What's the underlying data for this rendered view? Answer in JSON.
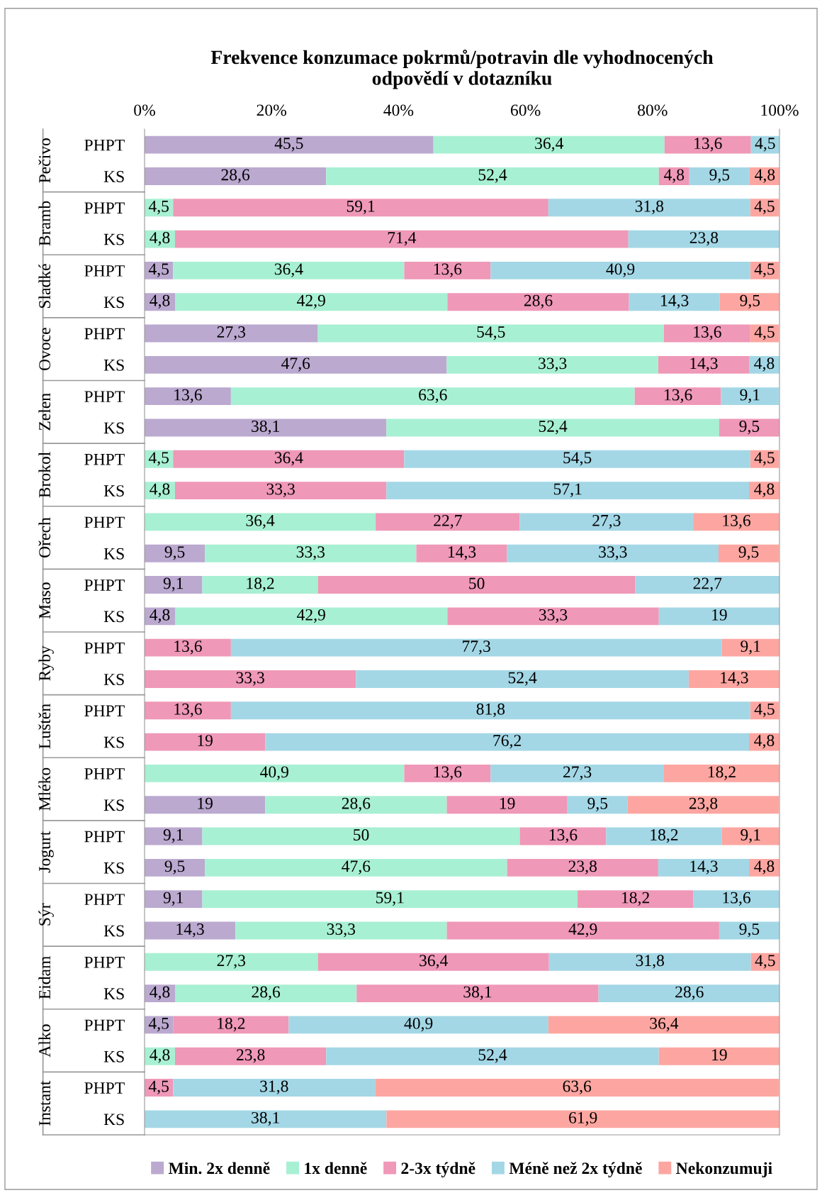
{
  "chart_data": {
    "type": "bar",
    "orientation": "horizontal",
    "stacked": true,
    "title": "Frekvence konzumace pokrmů/potravin dle vyhodnocených\nodpovědí v dotazníku",
    "categories": [
      "PHPT",
      "KS",
      "PHPT",
      "KS",
      "PHPT",
      "KS",
      "PHPT",
      "KS",
      "PHPT",
      "KS",
      "PHPT",
      "KS",
      "PHPT",
      "KS",
      "PHPT",
      "KS",
      "PHPT",
      "KS",
      "PHPT",
      "KS",
      "PHPT",
      "KS",
      "PHPT",
      "KS",
      "PHPT",
      "KS",
      "PHPT",
      "KS",
      "PHPT",
      "KS",
      "PHPT",
      "KS"
    ],
    "annotations": [
      "Pečivo",
      "Bramb",
      "Sladké",
      "Ovoce",
      "Zelen",
      "Brokol",
      "Ořech",
      "Maso",
      "Ryby",
      "Luštěn",
      "Mléko",
      "Jogurt",
      "Sýr",
      "Eidam",
      "Alko",
      "Instant"
    ],
    "series": [
      {
        "name": "Min. 2x denně",
        "color": "#bba9d0",
        "values": [
          45.5,
          28.6,
          null,
          null,
          4.5,
          4.8,
          27.3,
          47.6,
          13.6,
          38.1,
          null,
          null,
          null,
          9.5,
          9.1,
          4.8,
          null,
          null,
          null,
          null,
          null,
          19,
          9.1,
          9.5,
          9.1,
          14.3,
          null,
          4.8,
          4.5,
          null,
          null,
          null
        ],
        "value_labels": [
          "45,5",
          "28,6",
          null,
          null,
          "4,5",
          "4,8",
          "27,3",
          "47,6",
          "13,6",
          "38,1",
          null,
          null,
          null,
          "9,5",
          "9,1",
          "4,8",
          null,
          null,
          null,
          null,
          null,
          "19",
          "9,1",
          "9,5",
          "9,1",
          "14,3",
          null,
          "4,8",
          "4,5",
          null,
          null,
          null
        ]
      },
      {
        "name": "1x denně",
        "color": "#a8f0d3",
        "values": [
          36.4,
          52.4,
          4.5,
          4.8,
          36.4,
          42.9,
          54.5,
          33.3,
          63.6,
          52.4,
          4.5,
          4.8,
          36.4,
          33.3,
          18.2,
          42.9,
          null,
          null,
          null,
          null,
          40.9,
          28.6,
          50,
          47.6,
          59.1,
          33.3,
          27.3,
          28.6,
          null,
          4.8,
          null,
          null
        ],
        "value_labels": [
          "36,4",
          "52,4",
          "4,5",
          "4,8",
          "36,4",
          "42,9",
          "54,5",
          "33,3",
          "63,6",
          "52,4",
          "4,5",
          "4,8",
          "36,4",
          "33,3",
          "18,2",
          "42,9",
          null,
          null,
          null,
          null,
          "40,9",
          "28,6",
          "50",
          "47,6",
          "59,1",
          "33,3",
          "27,3",
          "28,6",
          null,
          "4,8",
          null,
          null
        ]
      },
      {
        "name": "2-3x týdně",
        "color": "#ef98b7",
        "values": [
          13.6,
          4.8,
          59.1,
          71.4,
          13.6,
          28.6,
          13.6,
          14.3,
          13.6,
          9.5,
          36.4,
          33.3,
          22.7,
          14.3,
          50,
          33.3,
          13.6,
          33.3,
          13.6,
          19,
          13.6,
          19,
          13.6,
          23.8,
          18.2,
          42.9,
          36.4,
          38.1,
          18.2,
          23.8,
          4.5,
          null
        ],
        "value_labels": [
          "13,6",
          "4,8",
          "59,1",
          "71,4",
          "13,6",
          "28,6",
          "13,6",
          "14,3",
          "13,6",
          "9,5",
          "36,4",
          "33,3",
          "22,7",
          "14,3",
          "50",
          "33,3",
          "13,6",
          "33,3",
          "13,6",
          "19",
          "13,6",
          "19",
          "13,6",
          "23,8",
          "18,2",
          "42,9",
          "36,4",
          "38,1",
          "18,2",
          "23,8",
          "4,5",
          null
        ]
      },
      {
        "name": "Méně než 2x týdně",
        "color": "#a3d7e6",
        "values": [
          4.5,
          9.5,
          31.8,
          23.8,
          40.9,
          14.3,
          null,
          4.8,
          9.1,
          null,
          54.5,
          57.1,
          27.3,
          33.3,
          22.7,
          19,
          77.3,
          52.4,
          81.8,
          76.2,
          27.3,
          9.5,
          18.2,
          14.3,
          13.6,
          9.5,
          31.8,
          28.6,
          40.9,
          52.4,
          31.8,
          38.1
        ],
        "value_labels": [
          "4,5",
          "9,5",
          "31,8",
          "23,8",
          "40,9",
          "14,3",
          null,
          "4,8",
          "9,1",
          null,
          "54,5",
          "57,1",
          "27,3",
          "33,3",
          "22,7",
          "19",
          "77,3",
          "52,4",
          "81,8",
          "76,2",
          "27,3",
          "9,5",
          "18,2",
          "14,3",
          "13,6",
          "9,5",
          "31,8",
          "28,6",
          "40,9",
          "52,4",
          "31,8",
          "38,1"
        ]
      },
      {
        "name": "Nekonzumuji",
        "color": "#fda6a1",
        "values": [
          null,
          4.8,
          4.5,
          null,
          4.5,
          9.5,
          4.5,
          null,
          null,
          null,
          4.5,
          4.8,
          13.6,
          9.5,
          null,
          null,
          9.1,
          14.3,
          4.5,
          4.8,
          18.2,
          23.8,
          9.1,
          4.8,
          null,
          null,
          4.5,
          null,
          36.4,
          19,
          63.6,
          61.9
        ],
        "value_labels": [
          null,
          "4,8",
          "4,5",
          null,
          "4,5",
          "9,5",
          "4,5",
          null,
          null,
          null,
          "4,5",
          "4,8",
          "13,6",
          "9,5",
          null,
          null,
          "9,1",
          "14,3",
          "4,5",
          "4,8",
          "18,2",
          "23,8",
          "9,1",
          "4,8",
          null,
          null,
          "4,5",
          null,
          "36,4",
          "19",
          "63,6",
          "61,9"
        ]
      }
    ],
    "xlim": [
      0,
      100
    ],
    "xticks": [
      {
        "value": 0,
        "label": "0%"
      },
      {
        "value": 20,
        "label": "20%"
      },
      {
        "value": 40,
        "label": "40%"
      },
      {
        "value": 60,
        "label": "60%"
      },
      {
        "value": 80,
        "label": "80%"
      },
      {
        "value": 100,
        "label": "100%"
      }
    ],
    "grid": false,
    "legend": "bottom"
  }
}
